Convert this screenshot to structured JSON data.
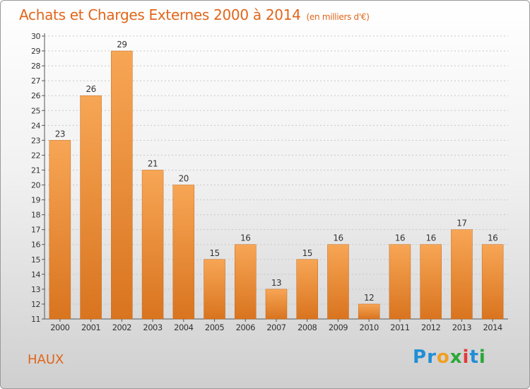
{
  "header": {
    "title": "Achats et Charges Externes 2000 à 2014",
    "unit": "(en milliers d'€)"
  },
  "footer": {
    "commune": "HAUX",
    "logo_letters": [
      {
        "ch": "P",
        "color": "#1f8fd6"
      },
      {
        "ch": "r",
        "color": "#1f8fd6"
      },
      {
        "ch": "o",
        "color": "#f0a020"
      },
      {
        "ch": "x",
        "color": "#2aa838"
      },
      {
        "ch": "i",
        "color": "#e23a3a"
      },
      {
        "ch": "t",
        "color": "#1f8fd6"
      },
      {
        "ch": "i",
        "color": "#2aa838"
      }
    ]
  },
  "colors": {
    "bar_top": "#f7a655",
    "bar_bottom": "#d9741f",
    "text": "#333333",
    "accent": "#e0661a"
  },
  "chart_data": {
    "type": "bar",
    "title": "Achats et Charges Externes 2000 à 2014",
    "subtitle": "(en milliers d'€)",
    "categories": [
      "2000",
      "2001",
      "2002",
      "2003",
      "2004",
      "2005",
      "2006",
      "2007",
      "2008",
      "2009",
      "2010",
      "2011",
      "2012",
      "2013",
      "2014"
    ],
    "values": [
      23,
      26,
      29,
      21,
      20,
      15,
      16,
      13,
      15,
      16,
      12,
      16,
      16,
      17,
      16
    ],
    "ylim": [
      11,
      30
    ],
    "yticks": [
      11,
      12,
      13,
      14,
      15,
      16,
      17,
      18,
      19,
      20,
      21,
      22,
      23,
      24,
      25,
      26,
      27,
      28,
      29,
      30
    ],
    "grid": true,
    "legend": "none"
  }
}
